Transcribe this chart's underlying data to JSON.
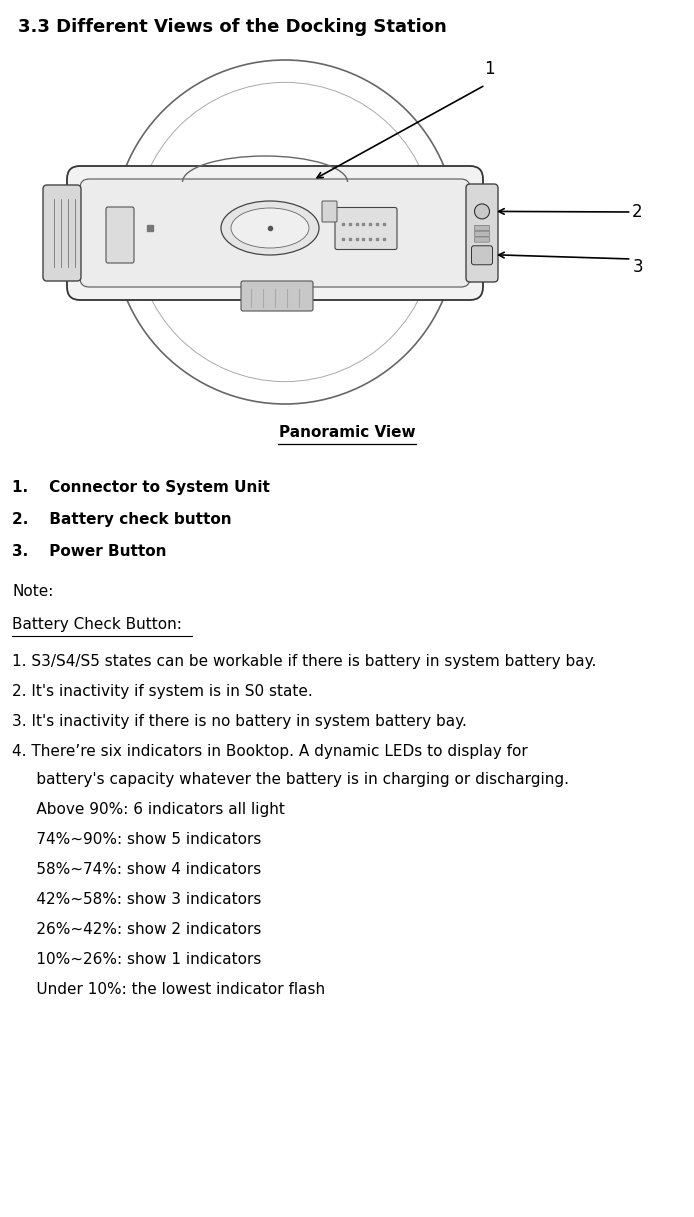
{
  "title": "3.3 Different Views of the Docking Station",
  "caption": "Panoramic View",
  "list_items": [
    "1.    Connector to System Unit",
    "2.    Battery check button",
    "3.    Power Button"
  ],
  "note_header": "Note:",
  "battery_header": "Battery Check Button:",
  "battery_notes": [
    "1. S3/S4/S5 states can be workable if there is battery in system battery bay.",
    "2. It's inactivity if system is in S0 state.",
    "3. It's inactivity if there is no battery in system battery bay.",
    "4. There’re six indicators in Booktop. A dynamic LEDs to display for"
  ],
  "battery_indent1": "     battery's capacity whatever the battery is in charging or discharging.",
  "battery_indent_items": [
    "     Above 90%: 6 indicators all light",
    "     74%~90%: show 5 indicators",
    "     58%~74%: show 4 indicators",
    "     42%~58%: show 3 indicators",
    "     26%~42%: show 2 indicators",
    "     10%~26%: show 1 indicators",
    "     Under 10%: the lowest indicator flash"
  ],
  "bg_color": "#ffffff",
  "text_color": "#000000",
  "fig_width": 6.94,
  "fig_height": 12.17
}
